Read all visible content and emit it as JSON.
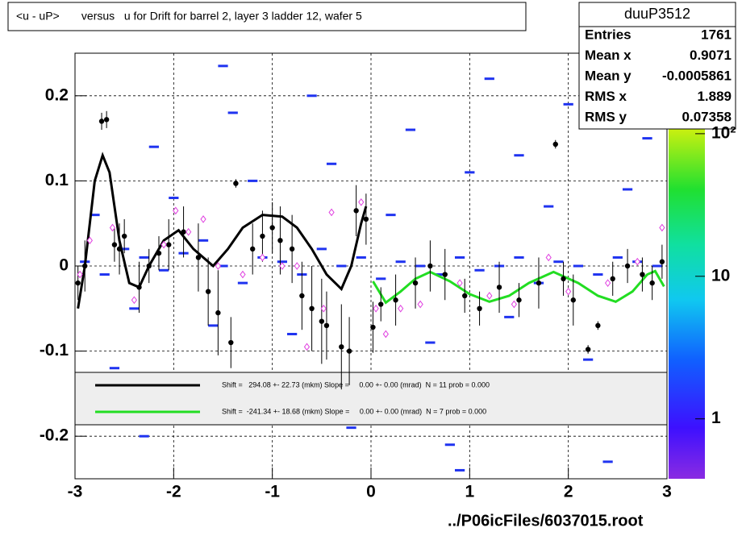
{
  "chart_data": {
    "type": "profile",
    "title": "<u - uP>       versus   u for Drift for barrel 2, layer 3 ladder 12, wafer 5",
    "xlim": [
      -3,
      3
    ],
    "ylim": [
      -0.25,
      0.25
    ],
    "xticks": [
      -3,
      -2,
      -1,
      0,
      1,
      2,
      3
    ],
    "yticks": [
      -0.2,
      -0.1,
      0,
      0.1,
      0.2
    ],
    "grid": true,
    "zlog": true,
    "zlim": [
      0.38,
      367
    ],
    "zticks": [
      1,
      10,
      {
        "value": 100,
        "label": "10²"
      }
    ],
    "footer": "../P06icFiles/6037015.root",
    "stats": {
      "name": "duuP3512",
      "rows": [
        [
          "Entries",
          1761
        ],
        [
          "Mean x",
          0.9071
        ],
        [
          "Mean y",
          -0.0005861
        ],
        [
          "RMS x",
          1.889
        ],
        [
          "RMS y",
          0.07358
        ]
      ]
    },
    "cells": {
      "color": "#1f33f0",
      "x": [
        -2.9,
        -2.7,
        -2.5,
        -2.3,
        -2.1,
        -1.9,
        -1.7,
        -1.5,
        -1.3,
        -1.1,
        -0.9,
        -0.7,
        -0.5,
        -0.3,
        -0.1,
        0.1,
        0.3,
        0.5,
        0.7,
        0.9,
        1.1,
        1.3,
        1.5,
        1.7,
        1.9,
        2.1,
        2.3,
        2.5,
        2.7,
        2.9,
        -2.8,
        -2.4,
        -2.0,
        -1.6,
        -1.2,
        -0.8,
        -0.4,
        0.2,
        0.6,
        1.0,
        1.4,
        1.8,
        2.2,
        2.6,
        -2.6,
        -2.2,
        -1.8,
        -1.4,
        -1.0,
        -0.6,
        -0.2,
        0.4,
        0.8,
        1.2,
        1.6,
        2.0,
        2.4,
        2.8,
        -1.5,
        0.9,
        2.3,
        -2.3,
        1.5
      ],
      "values": [
        0.005,
        -0.01,
        0.02,
        0.01,
        -0.005,
        0.015,
        0.03,
        0.0,
        -0.02,
        0.01,
        0.005,
        -0.01,
        0.02,
        0.0,
        0.01,
        -0.015,
        0.005,
        0.0,
        -0.01,
        0.01,
        -0.005,
        0.0,
        0.01,
        -0.02,
        0.005,
        0.0,
        -0.01,
        0.01,
        0.005,
        0.0,
        0.06,
        -0.05,
        0.08,
        -0.07,
        0.1,
        -0.08,
        0.12,
        0.06,
        -0.09,
        0.11,
        -0.06,
        0.07,
        -0.11,
        0.09,
        -0.12,
        0.14,
        -0.15,
        0.18,
        -0.17,
        0.2,
        -0.19,
        0.16,
        -0.21,
        0.22,
        -0.14,
        0.19,
        -0.23,
        0.15,
        0.235,
        -0.24,
        0.21,
        -0.2,
        0.13
      ]
    },
    "profile": {
      "color": "#000000",
      "x": [
        -2.97,
        -2.9,
        -2.73,
        -2.68,
        -2.6,
        -2.55,
        -2.5,
        -2.35,
        -2.25,
        -2.15,
        -2.05,
        -1.9,
        -1.75,
        -1.65,
        -1.55,
        -1.42,
        -1.37,
        -1.2,
        -1.1,
        -1.0,
        -0.92,
        -0.8,
        -0.7,
        -0.6,
        -0.5,
        -0.45,
        -0.3,
        -0.22,
        -0.15,
        -0.05,
        0.02,
        0.1,
        0.25,
        0.45,
        0.6,
        0.75,
        0.95,
        1.1,
        1.3,
        1.5,
        1.7,
        1.87,
        1.95,
        2.05,
        2.2,
        2.3,
        2.45,
        2.6,
        2.75,
        2.85,
        2.95
      ],
      "values": [
        -0.02,
        0.0,
        0.17,
        0.172,
        0.025,
        0.02,
        0.035,
        -0.025,
        0.0,
        0.015,
        0.025,
        0.04,
        0.01,
        -0.03,
        -0.055,
        -0.09,
        0.097,
        0.02,
        0.035,
        0.045,
        0.03,
        0.02,
        -0.035,
        -0.05,
        -0.065,
        -0.07,
        -0.095,
        -0.1,
        0.065,
        0.055,
        -0.072,
        -0.045,
        -0.04,
        -0.02,
        0.0,
        -0.01,
        -0.035,
        -0.05,
        -0.025,
        -0.04,
        -0.02,
        0.143,
        -0.015,
        -0.04,
        -0.098,
        -0.07,
        -0.015,
        0.0,
        -0.01,
        -0.02,
        0.005
      ],
      "errors": [
        0.02,
        0.03,
        0.01,
        0.01,
        0.02,
        0.03,
        0.02,
        0.03,
        0.02,
        0.02,
        0.03,
        0.03,
        0.04,
        0.04,
        0.05,
        0.03,
        0.005,
        0.03,
        0.03,
        0.03,
        0.04,
        0.04,
        0.04,
        0.05,
        0.05,
        0.04,
        0.05,
        0.04,
        0.03,
        0.03,
        0.03,
        0.02,
        0.03,
        0.03,
        0.03,
        0.03,
        0.02,
        0.02,
        0.03,
        0.02,
        0.03,
        0.005,
        0.02,
        0.03,
        0.005,
        0.005,
        0.02,
        0.02,
        0.02,
        0.02,
        0.02
      ]
    },
    "markers": {
      "color": "#e040e0",
      "x": [
        -2.95,
        -2.85,
        -2.62,
        -2.4,
        -2.1,
        -1.98,
        -1.85,
        -1.7,
        -1.55,
        -1.3,
        -1.1,
        -0.9,
        -0.75,
        -0.65,
        -0.48,
        -0.4,
        -0.1,
        0.05,
        0.15,
        0.3,
        0.5,
        0.9,
        1.2,
        1.45,
        1.8,
        2.0,
        2.4,
        2.7,
        2.95
      ],
      "values": [
        -0.01,
        0.03,
        0.045,
        -0.04,
        0.025,
        0.065,
        0.04,
        0.055,
        0.0,
        -0.01,
        0.01,
        0.0,
        0.0,
        -0.095,
        -0.05,
        0.063,
        0.075,
        -0.05,
        -0.08,
        -0.05,
        -0.045,
        -0.02,
        -0.035,
        -0.045,
        0.01,
        -0.03,
        -0.02,
        0.005,
        0.045
      ]
    },
    "fits": [
      {
        "color": "#000000",
        "label": "Shift =   294.08 +- 22.73 (mkm) Slope =     0.00 +- 0.00 (mrad)  N = 11 prob = 0.000",
        "x": [
          -2.97,
          -2.9,
          -2.8,
          -2.72,
          -2.65,
          -2.55,
          -2.45,
          -2.35,
          -2.25,
          -2.1,
          -1.95,
          -1.8,
          -1.6,
          -1.45,
          -1.3,
          -1.1,
          -0.9,
          -0.75,
          -0.6,
          -0.45,
          -0.3,
          -0.2,
          -0.1,
          -0.05
        ],
        "values": [
          -0.05,
          0.0,
          0.1,
          0.13,
          0.11,
          0.03,
          -0.02,
          -0.025,
          0.0,
          0.03,
          0.042,
          0.02,
          0.0,
          0.02,
          0.045,
          0.06,
          0.058,
          0.045,
          0.02,
          -0.01,
          -0.027,
          0.0,
          0.05,
          0.07
        ]
      },
      {
        "color": "#22dd22",
        "label": "Shift =  -241.34 +- 18.68 (mkm) Slope =     0.00 +- 0.00 (mrad)  N = 7 prob = 0.000",
        "x": [
          0.02,
          0.15,
          0.3,
          0.45,
          0.6,
          0.8,
          1.0,
          1.2,
          1.4,
          1.6,
          1.85,
          2.1,
          2.3,
          2.48,
          2.65,
          2.8,
          2.88,
          2.97
        ],
        "values": [
          -0.018,
          -0.043,
          -0.03,
          -0.015,
          -0.007,
          -0.018,
          -0.033,
          -0.042,
          -0.035,
          -0.02,
          -0.007,
          -0.02,
          -0.035,
          -0.042,
          -0.03,
          -0.01,
          -0.006,
          -0.024
        ]
      }
    ]
  }
}
